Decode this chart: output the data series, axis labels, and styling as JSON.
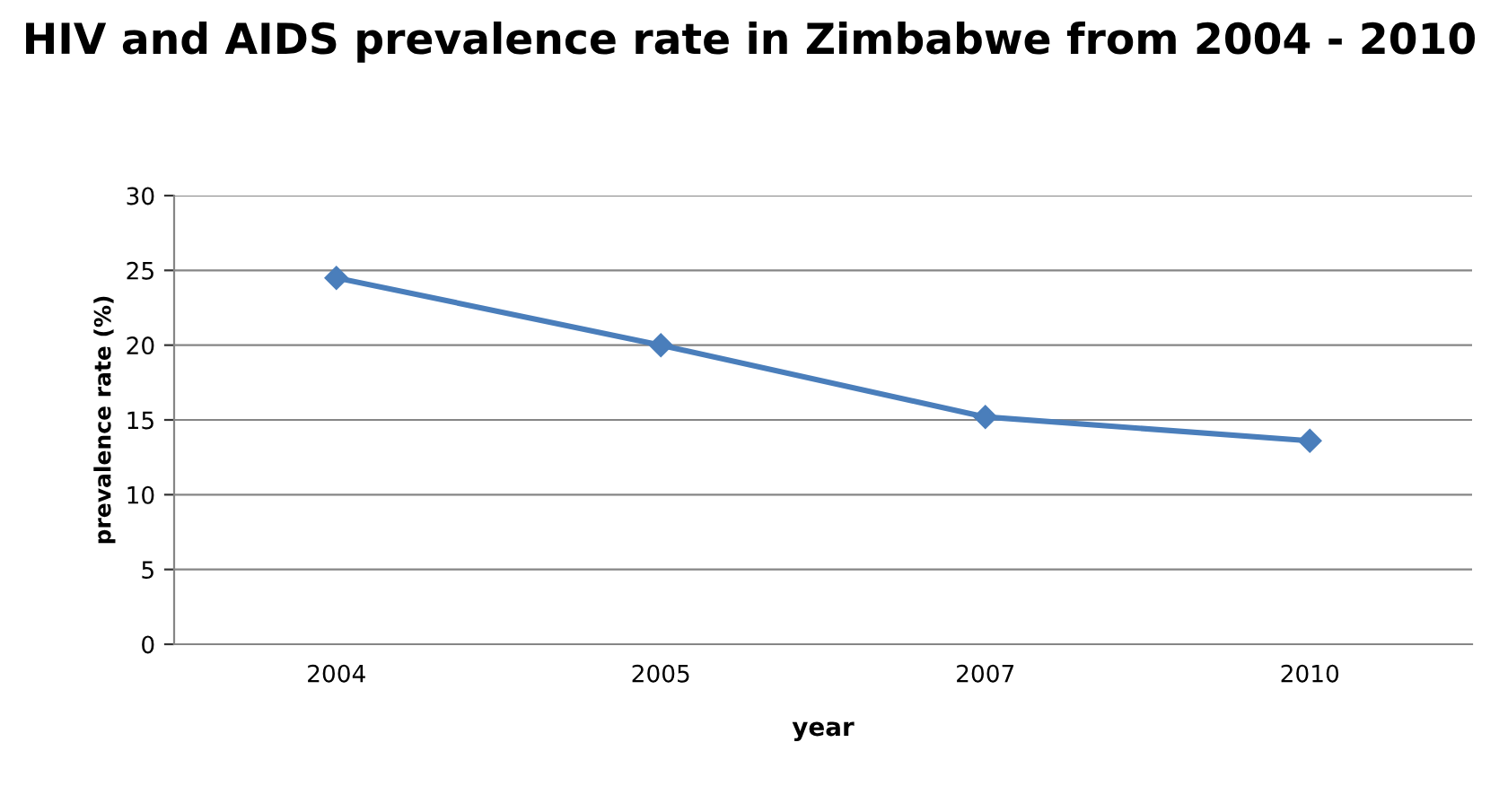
{
  "chart_data": {
    "type": "line",
    "title": "HIV and AIDS prevalence rate in Zimbabwe from 2004 - 2010",
    "xlabel": "year",
    "ylabel": "prevalence rate (%)",
    "categories": [
      "2004",
      "2005",
      "2007",
      "2010"
    ],
    "series": [
      {
        "color": "#4a7ebb",
        "values": [
          24.5,
          20.0,
          15.2,
          13.6
        ]
      }
    ],
    "ylim": [
      0,
      30
    ],
    "yticks": [
      0,
      5,
      10,
      15,
      20,
      25,
      30
    ],
    "grid": "y",
    "marker": "diamond",
    "line_style": "solid"
  }
}
